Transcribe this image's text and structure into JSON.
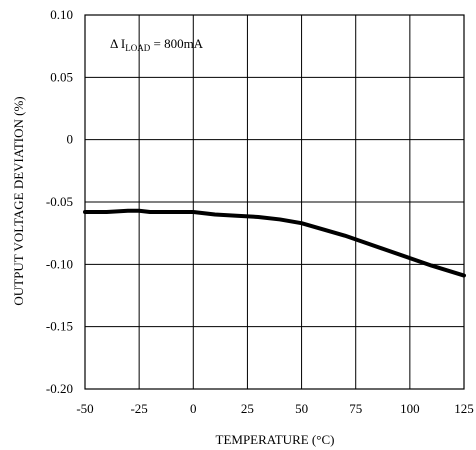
{
  "chart_data": {
    "type": "line",
    "xlabel": "TEMPERATURE (°C)",
    "ylabel": "OUTPUT VOLTAGE DEVIATION (%)",
    "xlim": [
      -50,
      125
    ],
    "ylim": [
      -0.2,
      0.1
    ],
    "xticks": [
      -50,
      -25,
      0,
      25,
      50,
      75,
      100,
      125
    ],
    "yticks": [
      0.1,
      0.05,
      0,
      -0.05,
      -0.1,
      -0.15,
      -0.2
    ],
    "xtick_labels": [
      "-50",
      "-25",
      "0",
      "25",
      "50",
      "75",
      "100",
      "125"
    ],
    "ytick_labels": [
      "0.10",
      "0.05",
      "0",
      "-0.05",
      "-0.10",
      "-0.15",
      "-0.20"
    ],
    "grid": true,
    "annotation": {
      "prefix": "Δ I",
      "sub": "LOAD",
      "suffix": " = 800mA"
    },
    "series": [
      {
        "x": [
          -50,
          -40,
          -30,
          -25,
          -20,
          -10,
          0,
          10,
          20,
          30,
          40,
          50,
          60,
          70,
          80,
          90,
          100,
          110,
          125
        ],
        "y": [
          -0.058,
          -0.058,
          -0.057,
          -0.057,
          -0.058,
          -0.058,
          -0.058,
          -0.06,
          -0.061,
          -0.062,
          -0.064,
          -0.067,
          -0.072,
          -0.077,
          -0.083,
          -0.089,
          -0.095,
          -0.101,
          -0.109
        ]
      }
    ]
  }
}
